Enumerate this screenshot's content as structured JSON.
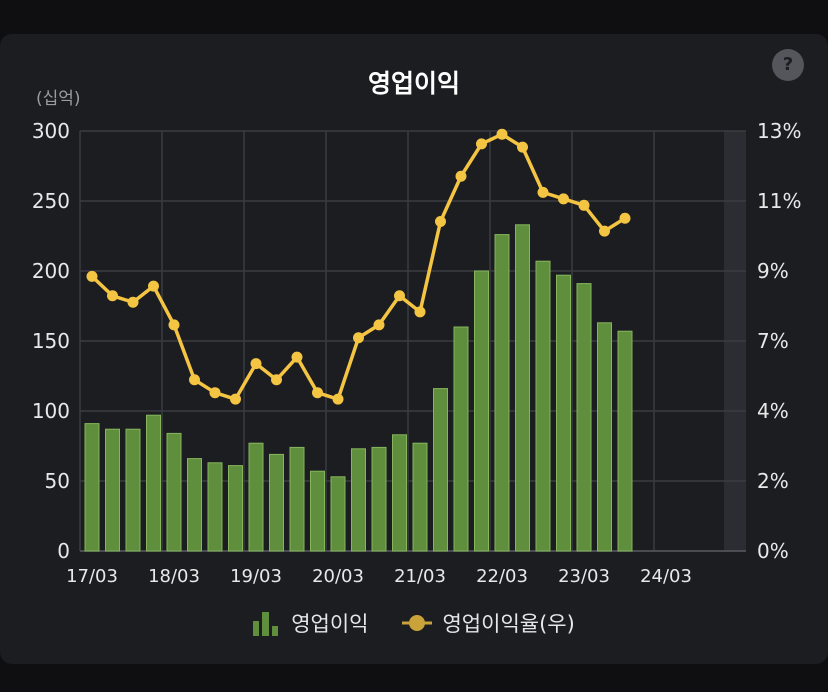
{
  "title": "영업이익",
  "unit_label": "(십억)",
  "help_label": "?",
  "colors": {
    "bar": "#5f8f3d",
    "bar_edge": "#86b55d",
    "line": "#f4c443",
    "grid": "#3a3c42",
    "axis_text": "#e8e8e8",
    "forecast_band": "#2b2d33"
  },
  "legend": {
    "bar_label": "영업이익",
    "line_label": "영업이익율(우)"
  },
  "chart_data": {
    "type": "bar",
    "title": "영업이익",
    "xlabel": "",
    "ylabel": "(십억)",
    "x_tick_labels": [
      "17/03",
      "18/03",
      "19/03",
      "20/03",
      "21/03",
      "22/03",
      "23/03",
      "24/03"
    ],
    "y_tick_labels": [
      "0",
      "50",
      "100",
      "150",
      "200",
      "250",
      "300"
    ],
    "y2_tick_labels": [
      "0%",
      "2%",
      "4%",
      "7%",
      "9%",
      "11%",
      "13%"
    ],
    "ylim": [
      0,
      300
    ],
    "y2lim": [
      0,
      13
    ],
    "grid": true,
    "legend_position": "bottom",
    "categories": [
      "17/03",
      "17/06",
      "17/09",
      "17/12",
      "18/03",
      "18/06",
      "18/09",
      "18/12",
      "19/03",
      "19/06",
      "19/09",
      "19/12",
      "20/03",
      "20/06",
      "20/09",
      "20/12",
      "21/03",
      "21/06",
      "21/09",
      "21/12",
      "22/03",
      "22/06",
      "22/09",
      "22/12",
      "23/03",
      "23/06",
      "23/09"
    ],
    "series": [
      {
        "name": "영업이익",
        "type": "bar",
        "axis": "left",
        "values": [
          91,
          87,
          87,
          97,
          84,
          66,
          63,
          61,
          77,
          69,
          74,
          57,
          53,
          73,
          74,
          83,
          77,
          116,
          160,
          200,
          226,
          233,
          207,
          197,
          191,
          163,
          157
        ]
      },
      {
        "name": "영업이익율(우)",
        "type": "line",
        "axis": "right",
        "values": [
          8.5,
          7.9,
          7.7,
          8.2,
          7.0,
          5.3,
          4.9,
          4.7,
          5.8,
          5.3,
          6.0,
          4.9,
          4.7,
          6.6,
          7.0,
          7.9,
          7.4,
          10.2,
          11.6,
          12.6,
          12.9,
          12.5,
          11.1,
          10.9,
          10.7,
          9.9,
          10.3
        ]
      }
    ]
  }
}
